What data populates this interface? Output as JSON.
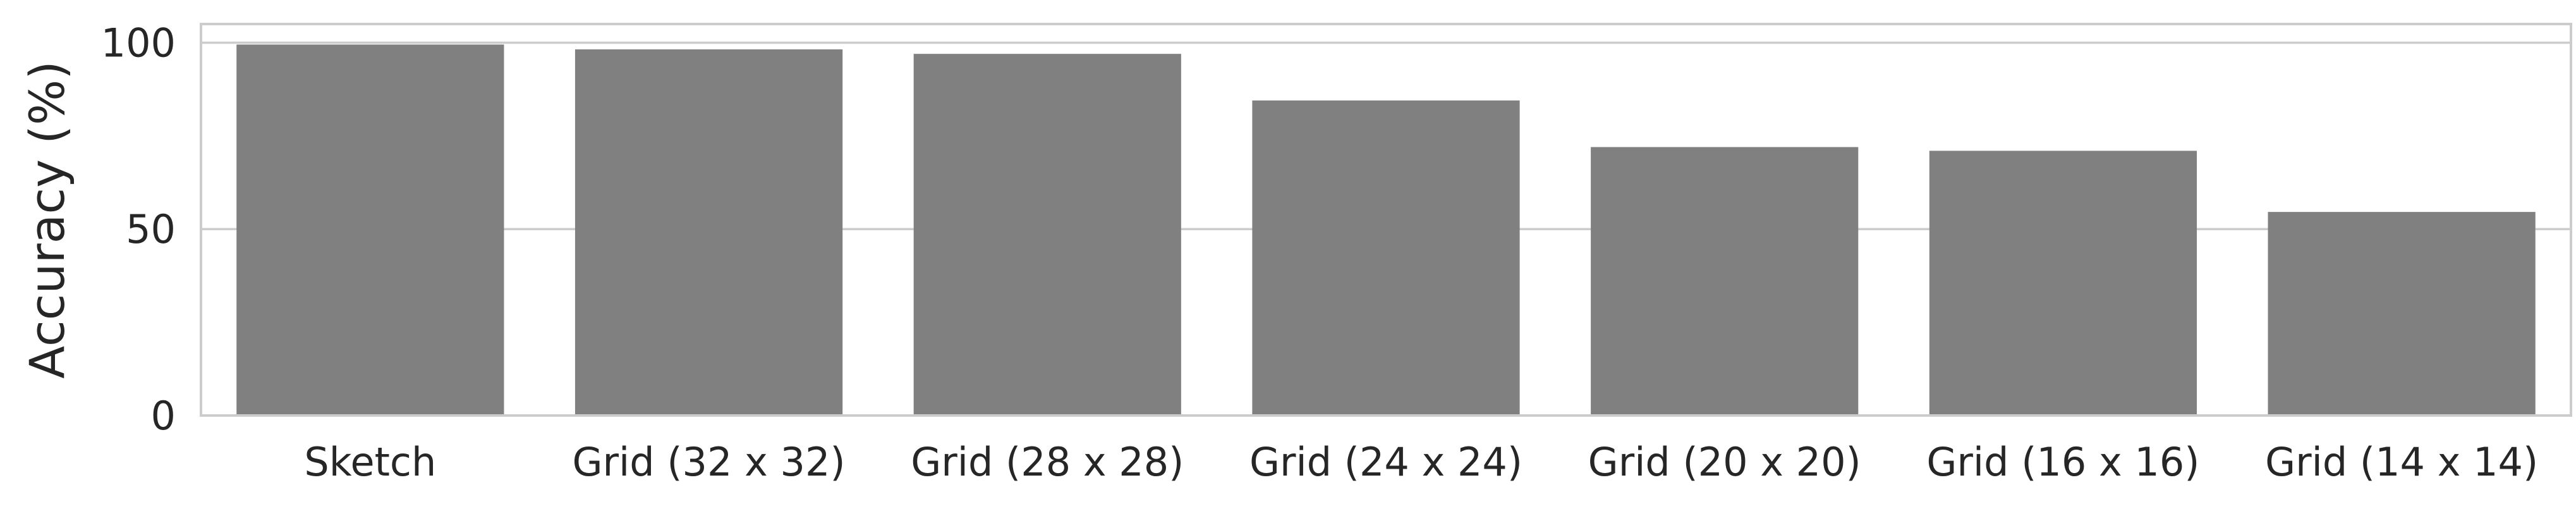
{
  "chart_data": {
    "type": "bar",
    "title": "",
    "xlabel": "",
    "ylabel": "Accuracy (%)",
    "categories": [
      "Sketch",
      "Grid (32 x 32)",
      "Grid (28 x 28)",
      "Grid (24 x 24)",
      "Grid (20 x 20)",
      "Grid (16 x 16)",
      "Grid (14 x 14)"
    ],
    "values": [
      99.5,
      98.2,
      97.0,
      84.5,
      72.0,
      71.0,
      54.6
    ],
    "ylim": [
      0,
      105
    ],
    "yticks": [
      0,
      50,
      100
    ],
    "grid": "horizontal",
    "bar_color": "#808080",
    "grid_color": "#cccccc",
    "frame_color": "#cccccc"
  }
}
